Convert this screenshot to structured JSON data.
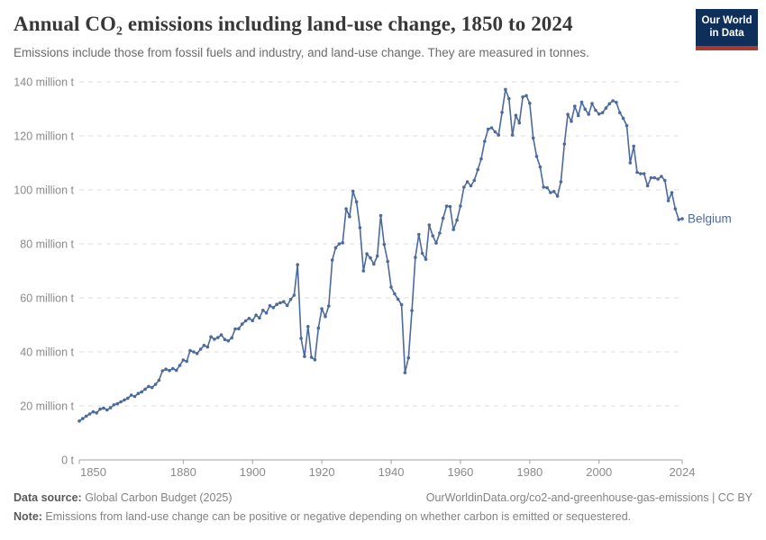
{
  "header": {
    "title": "Annual CO₂ emissions including land-use change, 1850 to 2024",
    "subtitle": "Emissions include those from fossil fuels and industry, and land-use change. They are measured in tonnes."
  },
  "logo": {
    "line1": "Our World",
    "line2": "in Data"
  },
  "chart_data": {
    "type": "line",
    "title": "Annual CO₂ emissions including land-use change, 1850 to 2024",
    "xlabel": "",
    "ylabel": "",
    "x_start": 1850,
    "x_end": 2024,
    "xlim": [
      1850,
      2024
    ],
    "ylim": [
      0,
      140
    ],
    "grid": "dashed-horizontal",
    "legend_position": "end-of-line-label",
    "x_ticks": [
      1850,
      1880,
      1900,
      1920,
      1940,
      1960,
      1980,
      2000,
      2024
    ],
    "y_ticks": [
      0,
      20,
      40,
      60,
      80,
      100,
      120,
      140
    ],
    "y_tick_labels": [
      "0 t",
      "20 million t",
      "40 million t",
      "60 million t",
      "80 million t",
      "100 million t",
      "120 million t",
      "140 million t"
    ],
    "line_color": "#4C6A9C",
    "series": [
      {
        "name": "Belgium",
        "unit": "million tonnes",
        "values": [
          14.4,
          15.3,
          16.2,
          17.0,
          17.8,
          17.4,
          18.8,
          19.2,
          18.5,
          19.3,
          20.4,
          20.8,
          21.5,
          22.2,
          22.8,
          24.0,
          23.5,
          24.6,
          25.2,
          26.2,
          27.2,
          26.8,
          28.0,
          29.5,
          33.0,
          33.6,
          33.1,
          33.8,
          33.2,
          35.0,
          37.0,
          36.5,
          40.5,
          40.0,
          39.4,
          41.0,
          42.4,
          41.8,
          45.6,
          44.7,
          45.3,
          46.3,
          44.6,
          44.1,
          45.2,
          48.5,
          48.6,
          50.3,
          51.5,
          52.4,
          51.6,
          53.6,
          52.6,
          55.4,
          54.4,
          57.1,
          56.4,
          57.6,
          58.2,
          58.6,
          57.2,
          59.4,
          61.0,
          72.3,
          45.0,
          38.3,
          49.4,
          38.0,
          37.1,
          48.8,
          56.0,
          53.1,
          57.0,
          74.0,
          78.6,
          80.0,
          80.4,
          93.0,
          90.1,
          99.5,
          95.6,
          86.0,
          70.0,
          76.3,
          74.8,
          72.5,
          75.5,
          90.5,
          79.8,
          73.5,
          64.0,
          61.5,
          59.5,
          57.5,
          32.3,
          37.8,
          55.3,
          75.0,
          83.5,
          76.5,
          74.3,
          87.0,
          83.0,
          80.3,
          84.0,
          89.5,
          94.0,
          93.8,
          85.3,
          88.8,
          94.0,
          101.0,
          103.0,
          101.5,
          103.5,
          107.5,
          111.5,
          118.0,
          122.5,
          123.0,
          121.5,
          120.3,
          128.7,
          137.2,
          133.8,
          120.3,
          127.6,
          124.8,
          134.4,
          134.9,
          132.1,
          119.2,
          112.4,
          108.5,
          101.0,
          100.8,
          99.0,
          99.4,
          97.7,
          103.0,
          117.0,
          128.0,
          125.4,
          131.0,
          127.5,
          132.5,
          129.9,
          128.0,
          132.0,
          129.5,
          128.1,
          128.6,
          130.3,
          131.9,
          133.0,
          132.4,
          128.6,
          126.5,
          123.8,
          110.0,
          116.2,
          106.5,
          106.0,
          106.0,
          101.5,
          104.5,
          104.5,
          104.0,
          105.0,
          103.5,
          96.0,
          99.0,
          93.0,
          89.0,
          89.3
        ]
      }
    ]
  },
  "footer": {
    "source_label": "Data source:",
    "source_value": " Global Carbon Budget (2025)",
    "link_text": "OurWorldinData.org/co2-and-greenhouse-gas-emissions | CC BY",
    "note_label": "Note:",
    "note_value": " Emissions from land-use change can be positive or negative depending on whether carbon is emitted or sequestered."
  }
}
